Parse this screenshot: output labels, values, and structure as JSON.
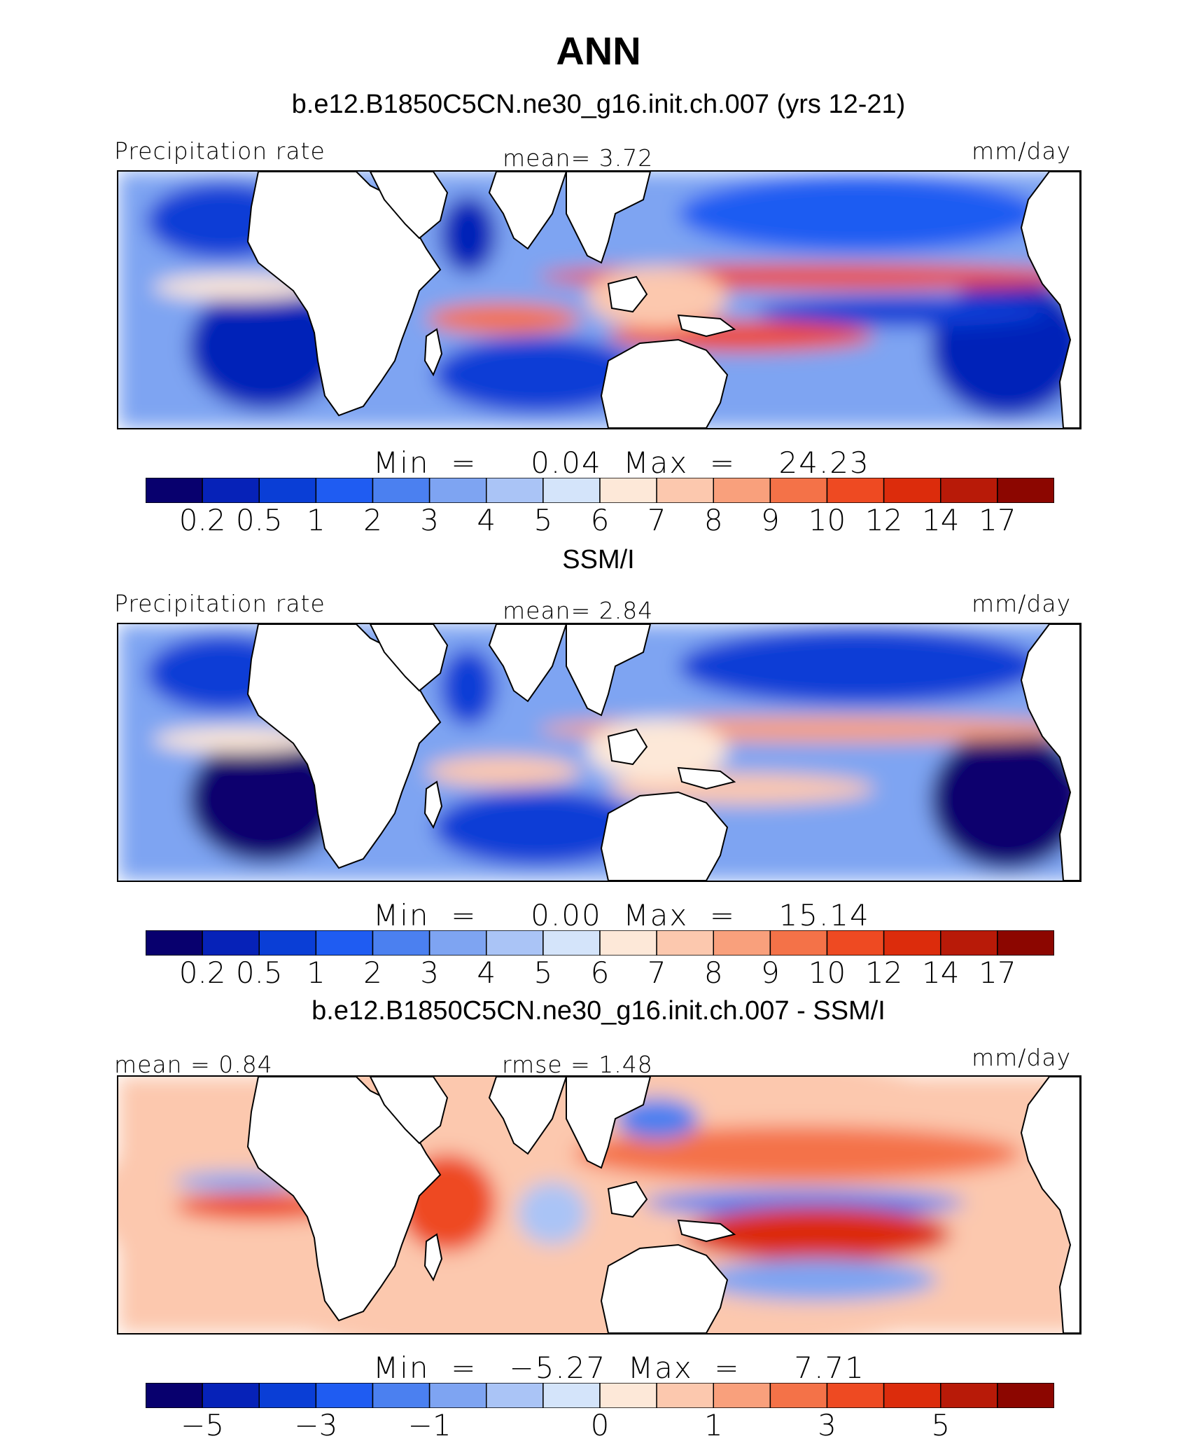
{
  "title": "ANN",
  "colorbar_colors": [
    "#08006e",
    "#0622b8",
    "#0a3ed6",
    "#1f5cf2",
    "#4b80f0",
    "#7ea4f2",
    "#aac4f6",
    "#d4e4fa",
    "#fde8d8",
    "#fcc8ae",
    "#f9a07c",
    "#f47248",
    "#ee4a22",
    "#dc2c0c",
    "#b81a08",
    "#8c0600"
  ],
  "panels": [
    {
      "title": "b.e12.B1850C5CN.ne30_g16.init.ch.007 (yrs 12-21)",
      "left_label": "Precipitation rate",
      "center_label": "mean=    3.72",
      "units": "mm/day",
      "stats": "Min  =     0.04  Max  =    24.23"
    },
    {
      "title": "SSM/I",
      "left_label": "Precipitation rate",
      "center_label": "mean=    2.84",
      "units": "mm/day",
      "stats": "Min  =     0.00  Max  =    15.14"
    },
    {
      "title": "b.e12.B1850C5CN.ne30_g16.init.ch.007 - SSM/I",
      "left_label": "mean  =    0.84",
      "center_label": "rmse  =    1.48",
      "units": "mm/day",
      "stats": "Min  =   −5.27  Max  =     7.71"
    }
  ],
  "chart_data": [
    {
      "type": "heatmap",
      "title": "b.e12.B1850C5CN.ne30_g16.init.ch.007 (yrs 12-21)",
      "variable": "Precipitation rate",
      "units": "mm/day",
      "mean": 3.72,
      "min": 0.04,
      "max": 24.23,
      "levels": [
        0.2,
        0.5,
        1,
        2,
        3,
        4,
        5,
        6,
        7,
        8,
        9,
        10,
        12,
        14,
        17
      ],
      "tick_labels": [
        "0.2",
        "0.5",
        "1",
        "2",
        "3",
        "4",
        "5",
        "6",
        "7",
        "8",
        "9",
        "10",
        "12",
        "14",
        "17"
      ],
      "features": [
        {
          "name": "north-pacific-dry",
          "level": 3
        },
        {
          "name": "south-atlantic-dry",
          "level": 1
        },
        {
          "name": "southeast-pacific-dry",
          "level": 1
        },
        {
          "name": "north-atlantic-dry",
          "level": 2
        },
        {
          "name": "arabian-sea-dry",
          "level": 1
        },
        {
          "name": "south-indian-dry",
          "level": 2
        },
        {
          "name": "equatorial-pacific-dry",
          "level": 2
        },
        {
          "name": "indian-ocean-itcz",
          "level": 11
        },
        {
          "name": "pacific-itcz",
          "level": 12
        },
        {
          "name": "spcz",
          "level": 12
        },
        {
          "name": "maritime-continent",
          "level": 9
        },
        {
          "name": "atlantic-itcz",
          "level": 8
        }
      ]
    },
    {
      "type": "heatmap",
      "title": "SSM/I",
      "variable": "Precipitation rate",
      "units": "mm/day",
      "mean": 2.84,
      "min": 0.0,
      "max": 15.14,
      "levels": [
        0.2,
        0.5,
        1,
        2,
        3,
        4,
        5,
        6,
        7,
        8,
        9,
        10,
        12,
        14,
        17
      ],
      "tick_labels": [
        "0.2",
        "0.5",
        "1",
        "2",
        "3",
        "4",
        "5",
        "6",
        "7",
        "8",
        "9",
        "10",
        "12",
        "14",
        "17"
      ],
      "features": [
        {
          "name": "north-pacific-dry",
          "level": 2
        },
        {
          "name": "south-atlantic-dry",
          "level": 0
        },
        {
          "name": "southeast-pacific-dry",
          "level": 0
        },
        {
          "name": "north-atlantic-dry",
          "level": 2
        },
        {
          "name": "arabian-sea-dry",
          "level": 2
        },
        {
          "name": "south-indian-dry",
          "level": 2
        },
        {
          "name": "indian-ocean-itcz",
          "level": 9
        },
        {
          "name": "pacific-itcz",
          "level": 10
        },
        {
          "name": "spcz",
          "level": 9
        },
        {
          "name": "maritime-continent",
          "level": 8
        },
        {
          "name": "atlantic-itcz",
          "level": 8
        }
      ]
    },
    {
      "type": "heatmap",
      "title": "b.e12.B1850C5CN.ne30_g16.init.ch.007 - SSM/I",
      "units": "mm/day",
      "mean": 0.84,
      "rmse": 1.48,
      "min": -5.27,
      "max": 7.71,
      "tick_labels": [
        "−5",
        "−3",
        "−1",
        "0",
        "1",
        "3",
        "5"
      ],
      "tick_positions": [
        1,
        3,
        5,
        8,
        10,
        12,
        14
      ],
      "features": [
        {
          "name": "background-positive",
          "level": 9
        },
        {
          "name": "north-atlantic-positive",
          "level": 9
        },
        {
          "name": "atlantic-itcz-positive",
          "level": 12
        },
        {
          "name": "atlantic-equator-negative",
          "level": 5
        },
        {
          "name": "western-indian-positive",
          "level": 12
        },
        {
          "name": "eastern-indian-negative",
          "level": 6
        },
        {
          "name": "north-pacific-itcz-positive",
          "level": 11
        },
        {
          "name": "equatorial-pacific-negative",
          "level": 4
        },
        {
          "name": "spcz-positive",
          "level": 13
        },
        {
          "name": "south-pacific-negative",
          "level": 5
        },
        {
          "name": "west-pacific-negative",
          "level": 4
        }
      ]
    }
  ]
}
